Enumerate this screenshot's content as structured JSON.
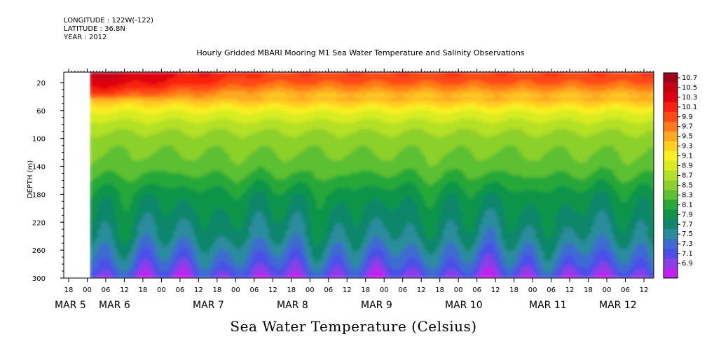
{
  "header": {
    "longitude": "LONGITUDE : 122W(-122)",
    "latitude": "LATITUDE : 36.8N",
    "year": "YEAR : 2012"
  },
  "chart_data": {
    "type": "heatmap",
    "title": "Hourly Gridded MBARI Mooring M1 Sea Water Temperature and Salinity Observations",
    "colorbar_title": "Sea Water Temperature (Celsius)",
    "ylabel": "DEPTH (m)",
    "ylim": [
      300,
      5
    ],
    "y_ticks": [
      "20",
      "60",
      "100",
      "140",
      "180",
      "220",
      "260",
      "300"
    ],
    "x_hour_ticks": [
      "18",
      "00",
      "06",
      "12",
      "18",
      "00",
      "06",
      "12",
      "18",
      "00",
      "06",
      "12",
      "18",
      "00",
      "06",
      "12",
      "18",
      "00",
      "06",
      "12",
      "18",
      "00",
      "06",
      "12",
      "18",
      "00",
      "06",
      "12",
      "18",
      "00",
      "06",
      "12"
    ],
    "x_day_labels": [
      "MAR 5",
      "MAR 6",
      "MAR 7",
      "MAR 8",
      "MAR 9",
      "MAR 10",
      "MAR 11",
      "MAR 12"
    ],
    "data_start": "2012-03-05 00:00",
    "data_end": "2012-03-12 18:00",
    "levels": [
      "10.7",
      "10.5",
      "10.3",
      "10.1",
      "9.9",
      "9.7",
      "9.5",
      "9.3",
      "9.1",
      "8.9",
      "8.7",
      "8.5",
      "8.3",
      "8.1",
      "7.9",
      "7.7",
      "7.5",
      "7.3",
      "7.1",
      "6.9"
    ],
    "level_colors": [
      "#a0001a",
      "#c80014",
      "#e00010",
      "#f82010",
      "#ff4a14",
      "#ff7a18",
      "#ffa820",
      "#ffd020",
      "#f8f020",
      "#d8ec20",
      "#b4e028",
      "#8cd02c",
      "#5cc030",
      "#28a838",
      "#10944a",
      "#10866a",
      "#2a8c9c",
      "#3c6cd0",
      "#4c50e8",
      "#8a3ee8",
      "#c020f0"
    ],
    "profile": [
      [
        5,
        10.3
      ],
      [
        20,
        10.1
      ],
      [
        40,
        9.6
      ],
      [
        60,
        9.1
      ],
      [
        80,
        8.8
      ],
      [
        100,
        8.6
      ],
      [
        120,
        8.5
      ],
      [
        140,
        8.4
      ],
      [
        160,
        8.2
      ],
      [
        180,
        8.0
      ],
      [
        200,
        7.9
      ],
      [
        220,
        7.8
      ],
      [
        240,
        7.7
      ],
      [
        260,
        7.5
      ],
      [
        280,
        7.3
      ],
      [
        300,
        7.0
      ]
    ]
  }
}
